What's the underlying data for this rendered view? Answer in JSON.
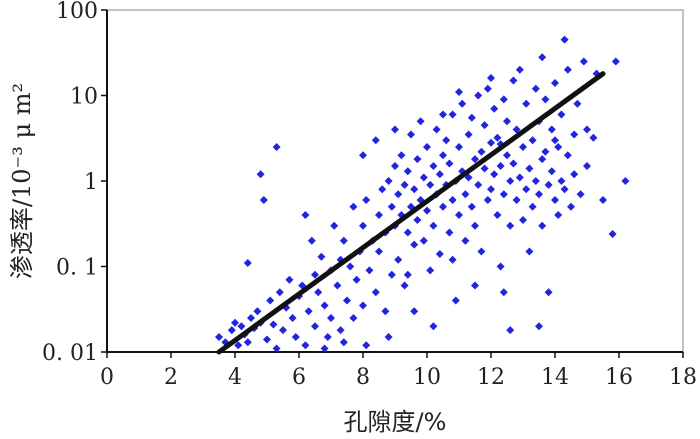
{
  "chart_data": {
    "type": "scatter",
    "title": "",
    "xlabel": "孔隙度/%",
    "ylabel_main": "渗透率/",
    "ylabel_unit": "10⁻³ μ m²",
    "xlim": [
      0,
      18
    ],
    "ylim": [
      0.01,
      100
    ],
    "yscale": "log",
    "grid": false,
    "x_ticks": [
      "0",
      "2",
      "4",
      "6",
      "8",
      "10",
      "12",
      "14",
      "16",
      "18"
    ],
    "y_ticks": [
      "0. 01",
      "0. 1",
      "1",
      "10",
      "100"
    ],
    "point_color": "#2323e0",
    "trendline": {
      "x": [
        3.5,
        15.5
      ],
      "y": [
        0.01,
        18
      ]
    },
    "points": [
      [
        3.5,
        0.015
      ],
      [
        3.7,
        0.013
      ],
      [
        3.9,
        0.018
      ],
      [
        4.0,
        0.022
      ],
      [
        4.1,
        0.012
      ],
      [
        4.2,
        0.02
      ],
      [
        4.3,
        0.016
      ],
      [
        4.4,
        0.11
      ],
      [
        4.4,
        0.013
      ],
      [
        4.5,
        0.025
      ],
      [
        4.6,
        0.019
      ],
      [
        4.7,
        0.03
      ],
      [
        4.8,
        0.022
      ],
      [
        4.8,
        1.2
      ],
      [
        4.9,
        0.6
      ],
      [
        5.0,
        0.014
      ],
      [
        5.1,
        0.04
      ],
      [
        5.2,
        0.021
      ],
      [
        5.3,
        2.5
      ],
      [
        5.3,
        0.011
      ],
      [
        5.4,
        0.05
      ],
      [
        5.5,
        0.018
      ],
      [
        5.6,
        0.033
      ],
      [
        5.7,
        0.07
      ],
      [
        5.8,
        0.025
      ],
      [
        5.9,
        0.015
      ],
      [
        6.0,
        0.045
      ],
      [
        6.1,
        0.06
      ],
      [
        6.2,
        0.4
      ],
      [
        6.2,
        0.012
      ],
      [
        6.3,
        0.03
      ],
      [
        6.4,
        0.2
      ],
      [
        6.5,
        0.08
      ],
      [
        6.5,
        0.02
      ],
      [
        6.6,
        0.05
      ],
      [
        6.7,
        0.13
      ],
      [
        6.8,
        0.035
      ],
      [
        6.9,
        0.015
      ],
      [
        7.0,
        0.09
      ],
      [
        7.0,
        0.025
      ],
      [
        7.1,
        0.3
      ],
      [
        7.2,
        0.06
      ],
      [
        7.3,
        0.12
      ],
      [
        7.3,
        0.018
      ],
      [
        7.4,
        0.2
      ],
      [
        7.5,
        0.04
      ],
      [
        7.6,
        0.1
      ],
      [
        7.7,
        0.5
      ],
      [
        7.7,
        0.025
      ],
      [
        7.8,
        0.07
      ],
      [
        7.9,
        0.15
      ],
      [
        8.0,
        0.3
      ],
      [
        8.0,
        0.035
      ],
      [
        8.1,
        0.6
      ],
      [
        8.1,
        0.012
      ],
      [
        8.2,
        0.09
      ],
      [
        8.3,
        0.2
      ],
      [
        8.4,
        3.0
      ],
      [
        8.4,
        0.05
      ],
      [
        8.5,
        0.4
      ],
      [
        8.5,
        0.15
      ],
      [
        8.6,
        0.8
      ],
      [
        8.7,
        0.25
      ],
      [
        8.7,
        0.03
      ],
      [
        8.8,
        1.0
      ],
      [
        8.9,
        0.5
      ],
      [
        8.9,
        0.08
      ],
      [
        9.0,
        0.3
      ],
      [
        9.0,
        1.5
      ],
      [
        9.1,
        0.7
      ],
      [
        9.1,
        0.12
      ],
      [
        9.2,
        2.0
      ],
      [
        9.2,
        0.4
      ],
      [
        9.3,
        0.9
      ],
      [
        9.3,
        0.06
      ],
      [
        9.4,
        0.25
      ],
      [
        9.4,
        1.3
      ],
      [
        9.5,
        0.5
      ],
      [
        9.5,
        3.5
      ],
      [
        9.6,
        0.8
      ],
      [
        9.6,
        0.18
      ],
      [
        9.7,
        1.8
      ],
      [
        9.7,
        0.35
      ],
      [
        9.8,
        0.6
      ],
      [
        9.8,
        5.0
      ],
      [
        9.9,
        1.1
      ],
      [
        9.9,
        0.2
      ],
      [
        10.0,
        0.45
      ],
      [
        10.0,
        2.5
      ],
      [
        10.1,
        0.9
      ],
      [
        10.1,
        0.09
      ],
      [
        10.2,
        1.5
      ],
      [
        10.2,
        0.3
      ],
      [
        10.3,
        4.0
      ],
      [
        10.3,
        0.7
      ],
      [
        10.4,
        1.2
      ],
      [
        10.4,
        0.14
      ],
      [
        10.5,
        2.0
      ],
      [
        10.5,
        0.5
      ],
      [
        10.6,
        3.0
      ],
      [
        10.6,
        0.9
      ],
      [
        10.7,
        0.25
      ],
      [
        10.7,
        1.6
      ],
      [
        10.8,
        6.0
      ],
      [
        10.8,
        0.6
      ],
      [
        10.9,
        1.0
      ],
      [
        10.9,
        0.04
      ],
      [
        11.0,
        2.5
      ],
      [
        11.0,
        0.4
      ],
      [
        11.1,
        1.3
      ],
      [
        11.1,
        8.0
      ],
      [
        11.2,
        0.7
      ],
      [
        11.2,
        0.2
      ],
      [
        11.3,
        3.5
      ],
      [
        11.3,
        1.1
      ],
      [
        11.4,
        0.5
      ],
      [
        11.4,
        5.5
      ],
      [
        11.5,
        1.8
      ],
      [
        11.5,
        0.3
      ],
      [
        11.6,
        0.9
      ],
      [
        11.6,
        10.0
      ],
      [
        11.7,
        2.2
      ],
      [
        11.7,
        0.15
      ],
      [
        11.8,
        1.4
      ],
      [
        11.8,
        4.5
      ],
      [
        11.9,
        0.6
      ],
      [
        11.9,
        12.0
      ],
      [
        12.0,
        2.8
      ],
      [
        12.0,
        0.8
      ],
      [
        12.1,
        1.2
      ],
      [
        12.1,
        7.0
      ],
      [
        12.2,
        0.4
      ],
      [
        12.2,
        3.2
      ],
      [
        12.3,
        1.5
      ],
      [
        12.3,
        0.1
      ],
      [
        12.4,
        9.0
      ],
      [
        12.4,
        0.7
      ],
      [
        12.5,
        2.0
      ],
      [
        12.5,
        5.0
      ],
      [
        12.6,
        1.0
      ],
      [
        12.6,
        0.3
      ],
      [
        12.7,
        15.0
      ],
      [
        12.7,
        1.6
      ],
      [
        12.8,
        0.6
      ],
      [
        12.8,
        4.0
      ],
      [
        12.9,
        20.0
      ],
      [
        12.9,
        1.1
      ],
      [
        13.0,
        0.35
      ],
      [
        13.0,
        2.5
      ],
      [
        13.1,
        8.0
      ],
      [
        13.1,
        0.8
      ],
      [
        13.2,
        1.4
      ],
      [
        13.2,
        0.15
      ],
      [
        13.3,
        3.0
      ],
      [
        13.3,
        0.5
      ],
      [
        13.4,
        12.0
      ],
      [
        13.4,
        1.0
      ],
      [
        13.5,
        0.7
      ],
      [
        13.5,
        5.0
      ],
      [
        13.6,
        1.8
      ],
      [
        13.6,
        0.3
      ],
      [
        13.7,
        2.2
      ],
      [
        13.7,
        9.0
      ],
      [
        13.8,
        0.9
      ],
      [
        13.8,
        0.05
      ],
      [
        13.9,
        1.3
      ],
      [
        13.9,
        4.0
      ],
      [
        14.0,
        0.6
      ],
      [
        14.0,
        14.0
      ],
      [
        14.1,
        2.5
      ],
      [
        14.1,
        0.4
      ],
      [
        14.2,
        1.0
      ],
      [
        14.2,
        6.0
      ],
      [
        14.3,
        45.0
      ],
      [
        14.3,
        0.8
      ],
      [
        14.4,
        20.0
      ],
      [
        14.4,
        2.0
      ],
      [
        14.5,
        0.5
      ],
      [
        14.6,
        3.5
      ],
      [
        14.6,
        1.2
      ],
      [
        14.7,
        8.0
      ],
      [
        14.8,
        0.7
      ],
      [
        14.9,
        25.0
      ],
      [
        15.0,
        4.0
      ],
      [
        15.0,
        1.5
      ],
      [
        15.2,
        3.2
      ],
      [
        15.3,
        18.0
      ],
      [
        15.5,
        0.6
      ],
      [
        15.8,
        0.24
      ],
      [
        15.9,
        25.0
      ],
      [
        16.2,
        1.0
      ],
      [
        10.2,
        0.02
      ],
      [
        11.5,
        0.06
      ],
      [
        12.6,
        0.018
      ],
      [
        13.5,
        0.02
      ],
      [
        12.4,
        0.05
      ],
      [
        9.6,
        0.03
      ],
      [
        8.8,
        0.015
      ],
      [
        7.4,
        0.013
      ],
      [
        6.8,
        0.011
      ],
      [
        10.5,
        6.0
      ],
      [
        9.0,
        4.0
      ],
      [
        8.0,
        2.0
      ],
      [
        12.0,
        16.0
      ],
      [
        11.0,
        11.0
      ],
      [
        13.6,
        28.0
      ],
      [
        14.0,
        3.0
      ],
      [
        12.3,
        2.7
      ],
      [
        10.8,
        0.12
      ],
      [
        9.4,
        0.08
      ]
    ]
  }
}
